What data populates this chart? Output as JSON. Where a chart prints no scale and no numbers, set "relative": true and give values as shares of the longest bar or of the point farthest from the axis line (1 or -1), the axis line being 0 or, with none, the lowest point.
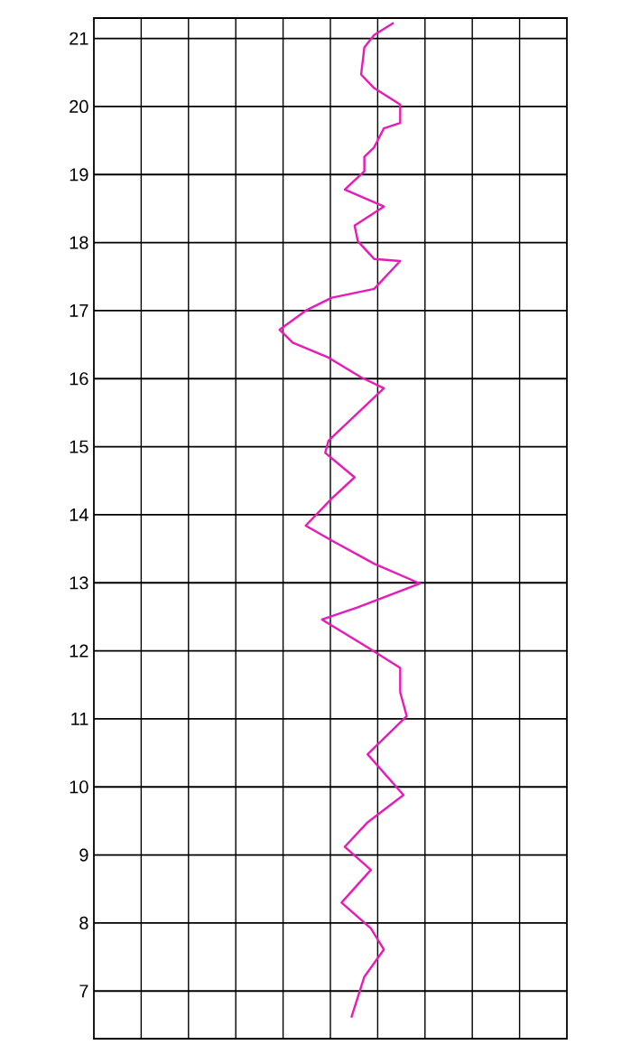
{
  "chart_data": {
    "type": "line",
    "orientation": "horizontal",
    "relative": true,
    "grid": true,
    "marker": "none",
    "line_style": "solid",
    "ylim": [
      6.3,
      21.3
    ],
    "yticks": [
      7,
      8,
      9,
      10,
      11,
      12,
      13,
      14,
      15,
      16,
      17,
      18,
      19,
      20,
      21
    ],
    "x": [
      21.23,
      21.05,
      20.87,
      20.47,
      20.27,
      20.03,
      19.76,
      19.68,
      19.4,
      19.26,
      19.05,
      18.78,
      18.53,
      18.25,
      18.02,
      17.76,
      17.73,
      17.32,
      17.19,
      17.0,
      16.72,
      16.53,
      16.31,
      16.02,
      15.86,
      15.09,
      14.91,
      14.55,
      14.24,
      13.84,
      13.62,
      13.28,
      12.99,
      12.64,
      12.46,
      12.05,
      11.75,
      11.39,
      11.04,
      10.48,
      9.88,
      9.48,
      9.12,
      8.78,
      8.3,
      7.92,
      7.61,
      7.21,
      6.61
    ],
    "series": [
      {
        "color": "#e81ab8",
        "values": [
          0.92,
          0.86,
          0.83,
          0.82,
          0.86,
          0.94,
          0.94,
          0.89,
          0.86,
          0.83,
          0.83,
          0.77,
          0.89,
          0.8,
          0.81,
          0.86,
          0.94,
          0.86,
          0.73,
          0.65,
          0.57,
          0.61,
          0.72,
          0.82,
          0.89,
          0.72,
          0.71,
          0.8,
          0.73,
          0.65,
          0.73,
          0.86,
          1.0,
          0.81,
          0.7,
          0.84,
          0.94,
          0.94,
          0.96,
          0.84,
          0.95,
          0.84,
          0.77,
          0.85,
          0.76,
          0.85,
          0.89,
          0.83,
          0.79
        ]
      }
    ]
  }
}
